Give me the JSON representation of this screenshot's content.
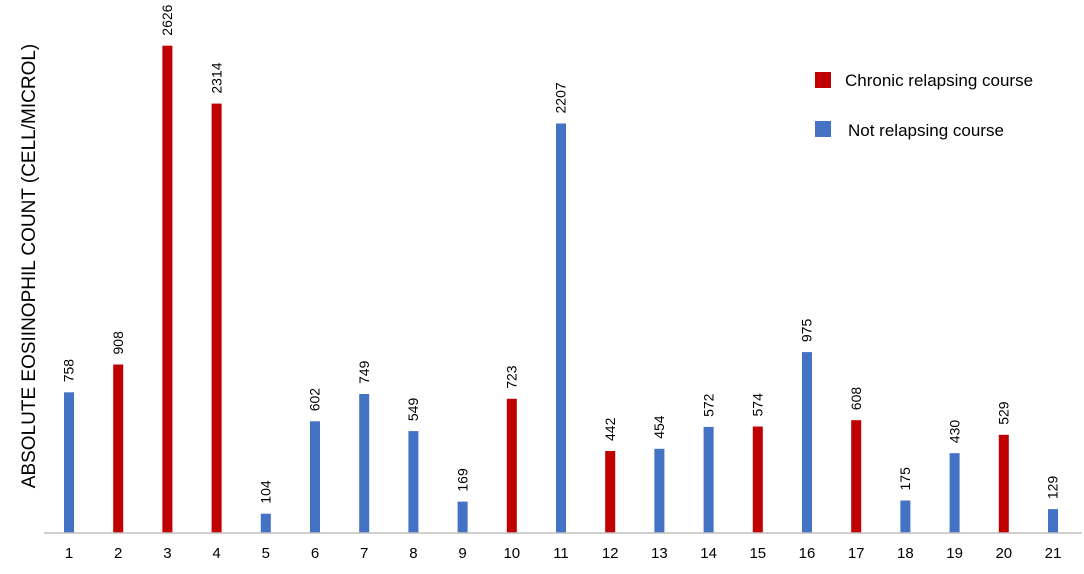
{
  "chart_data": {
    "type": "bar",
    "title": "",
    "xlabel": "",
    "ylabel": "ABSOLUTE EOSIINOPHIL COUNT (CELL/MICROL)",
    "ylim": [
      0,
      2700
    ],
    "grid": false,
    "legend_position": "top-right",
    "categories": [
      "1",
      "2",
      "3",
      "4",
      "5",
      "6",
      "7",
      "8",
      "9",
      "10",
      "11",
      "12",
      "13",
      "14",
      "15",
      "16",
      "17",
      "18",
      "19",
      "20",
      "21"
    ],
    "values": [
      758,
      908,
      2626,
      2314,
      104,
      602,
      749,
      549,
      169,
      723,
      2207,
      442,
      454,
      572,
      574,
      975,
      608,
      175,
      430,
      529,
      129
    ],
    "group": [
      "not",
      "chronic",
      "chronic",
      "chronic",
      "not",
      "not",
      "not",
      "not",
      "not",
      "chronic",
      "not",
      "chronic",
      "not",
      "not",
      "chronic",
      "not",
      "chronic",
      "not",
      "not",
      "chronic",
      "not"
    ],
    "data_labels": [
      "758",
      "908",
      "2626",
      "2314",
      "104",
      "602",
      "749",
      "549",
      "169",
      "723",
      "2207",
      "442",
      "454",
      "572",
      "574",
      "975",
      "608",
      "175",
      "430",
      "529",
      "129"
    ],
    "legend": [
      {
        "key": "chronic",
        "label": "Chronic relapsing course",
        "color": "#c00000"
      },
      {
        "key": "not",
        "label": "Not relapsing course",
        "color": "#4472c4"
      }
    ],
    "colors": {
      "chronic": "#c00000",
      "not": "#4472c4",
      "axis": "#bfbfbf",
      "text": "#000000"
    }
  }
}
